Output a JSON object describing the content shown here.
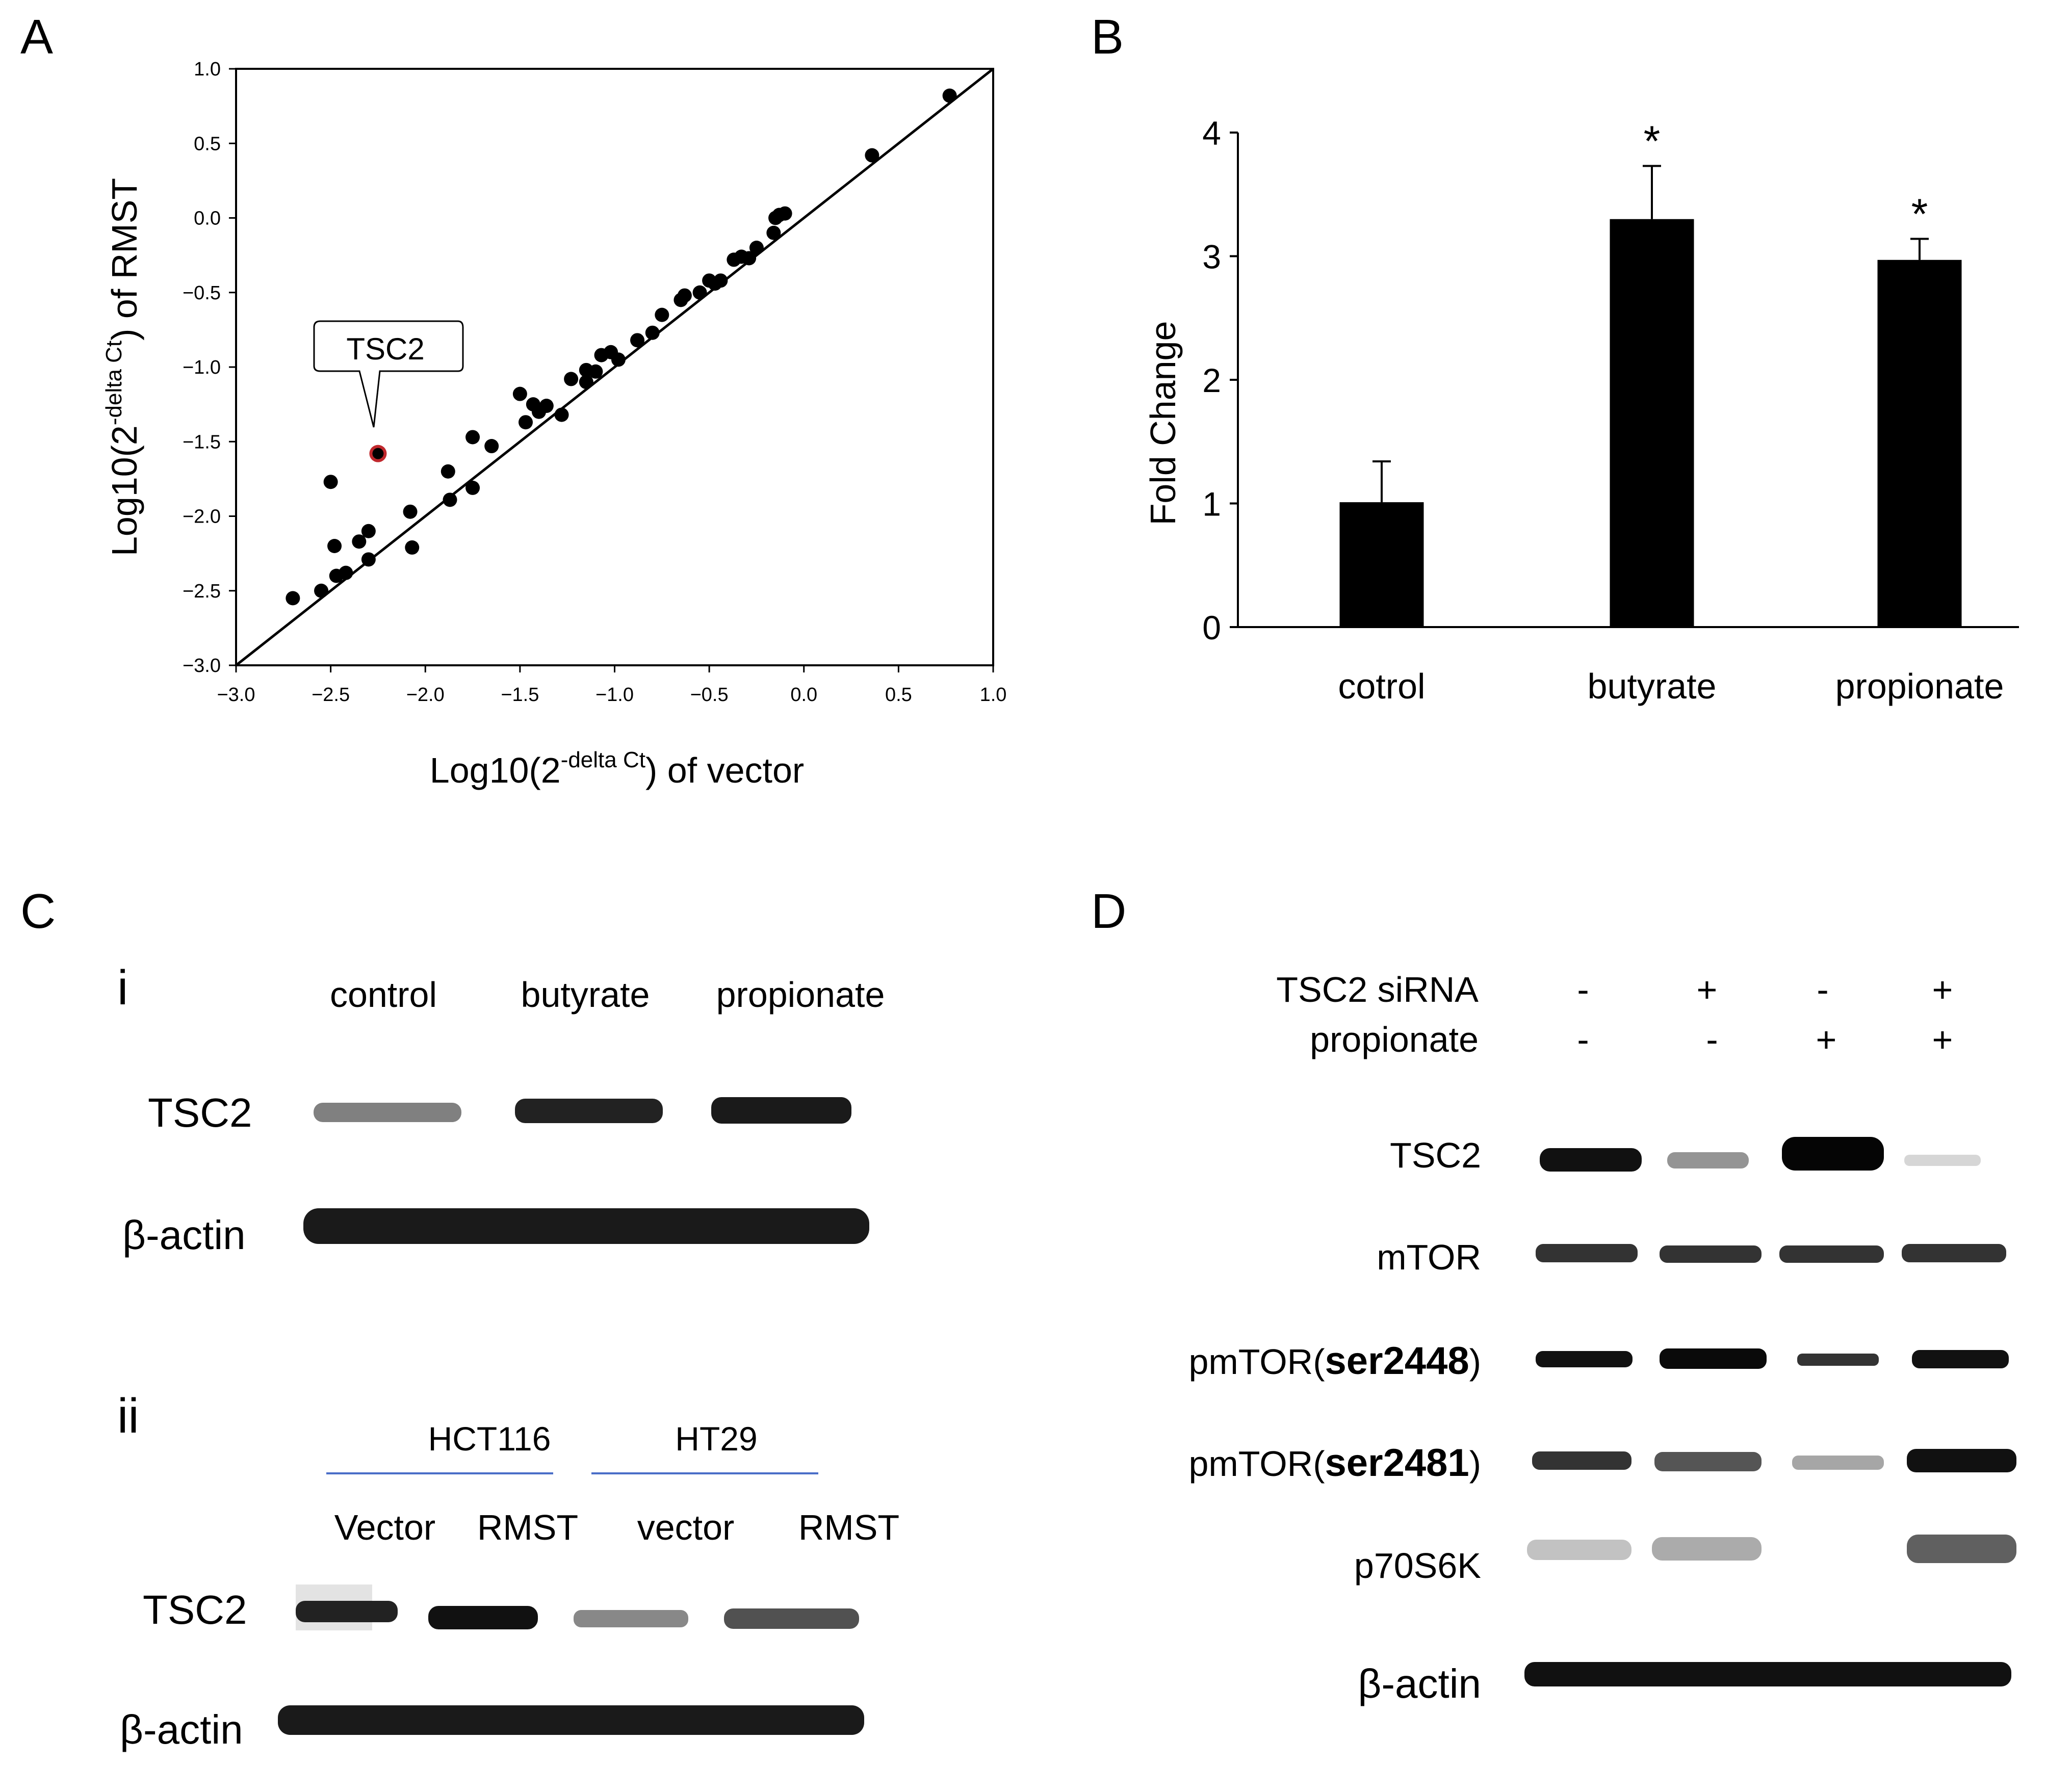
{
  "panels": {
    "a": "A",
    "b": "B",
    "c": "C",
    "d": "D"
  },
  "chart_data": [
    {
      "type": "scatter",
      "panel": "A",
      "xlabel": {
        "pre": "Log10(2",
        "sup": "-delta Ct",
        "post": ") of vector"
      },
      "ylabel": {
        "pre": "Log10(2",
        "sup": "-delta Ct",
        "post": ") of RMST"
      },
      "xlim": [
        -3.0,
        1.0
      ],
      "ylim": [
        -3.0,
        1.0
      ],
      "xticks": [
        "−3.0",
        "−2.5",
        "−2.0",
        "−1.5",
        "−1.0",
        "−0.5",
        "0.0",
        "0.5",
        "1.0"
      ],
      "yticks": [
        "−3.0",
        "−2.5",
        "−2.0",
        "−1.5",
        "−1.0",
        "−0.5",
        "0.0",
        "0.5",
        "1.0"
      ],
      "reference_line": {
        "from": [
          -3.0,
          -3.0
        ],
        "to": [
          1.0,
          1.0
        ]
      },
      "annotation": {
        "label": "TSC2",
        "point": [
          -2.25,
          -1.58
        ],
        "highlight_color": "#c0282d"
      },
      "points": [
        [
          -2.7,
          -2.55
        ],
        [
          -2.55,
          -2.5
        ],
        [
          -2.5,
          -1.77
        ],
        [
          -2.48,
          -2.2
        ],
        [
          -2.47,
          -2.4
        ],
        [
          -2.42,
          -2.38
        ],
        [
          -2.35,
          -2.17
        ],
        [
          -2.3,
          -2.1
        ],
        [
          -2.3,
          -2.29
        ],
        [
          -2.07,
          -2.21
        ],
        [
          -2.08,
          -1.97
        ],
        [
          -1.88,
          -1.7
        ],
        [
          -1.87,
          -1.89
        ],
        [
          -1.75,
          -1.47
        ],
        [
          -1.75,
          -1.81
        ],
        [
          -1.65,
          -1.53
        ],
        [
          -1.5,
          -1.18
        ],
        [
          -1.47,
          -1.37
        ],
        [
          -1.43,
          -1.25
        ],
        [
          -1.4,
          -1.3
        ],
        [
          -1.36,
          -1.26
        ],
        [
          -1.28,
          -1.32
        ],
        [
          -1.23,
          -1.08
        ],
        [
          -1.15,
          -1.02
        ],
        [
          -1.15,
          -1.1
        ],
        [
          -1.1,
          -1.03
        ],
        [
          -1.07,
          -0.92
        ],
        [
          -1.02,
          -0.9
        ],
        [
          -0.98,
          -0.95
        ],
        [
          -0.88,
          -0.82
        ],
        [
          -0.8,
          -0.77
        ],
        [
          -0.75,
          -0.65
        ],
        [
          -0.65,
          -0.55
        ],
        [
          -0.63,
          -0.52
        ],
        [
          -0.55,
          -0.5
        ],
        [
          -0.5,
          -0.42
        ],
        [
          -0.47,
          -0.44
        ],
        [
          -0.44,
          -0.42
        ],
        [
          -0.37,
          -0.28
        ],
        [
          -0.33,
          -0.26
        ],
        [
          -0.29,
          -0.27
        ],
        [
          -0.25,
          -0.2
        ],
        [
          -0.16,
          -0.1
        ],
        [
          -0.15,
          0.0
        ],
        [
          -0.13,
          0.02
        ],
        [
          -0.1,
          0.03
        ],
        [
          0.36,
          0.42
        ],
        [
          0.77,
          0.82
        ],
        [
          -2.25,
          -1.58
        ]
      ]
    },
    {
      "type": "bar",
      "panel": "B",
      "ylabel": "Fold Change",
      "xlabel": "",
      "ylim": [
        0,
        4
      ],
      "yticks": [
        "0",
        "1",
        "2",
        "3",
        "4"
      ],
      "categories": [
        "cotrol",
        "butyrate",
        "propionate"
      ],
      "values": [
        1.01,
        3.3,
        2.97
      ],
      "errors": [
        0.33,
        0.43,
        0.17
      ],
      "significance": [
        "",
        "*",
        "*"
      ],
      "bar_color": "#000000"
    }
  ],
  "panel_c": {
    "sub_i": "i",
    "sub_ii": "ii",
    "i_lanes": [
      "control",
      "butyrate",
      "propionate"
    ],
    "i_rows": [
      "TSC2",
      "β-actin"
    ],
    "ii_groups": [
      "HCT116",
      "HT29"
    ],
    "ii_group_line_color": "#4a6ec8",
    "ii_lanes": [
      "Vector",
      "RMST",
      "vector",
      "RMST"
    ],
    "ii_rows": [
      "TSC2",
      "β-actin"
    ]
  },
  "panel_d": {
    "conditions": [
      {
        "label": "TSC2 siRNA",
        "values": [
          "-",
          "+",
          "-",
          "+"
        ]
      },
      {
        "label": "propionate",
        "values": [
          "-",
          "-",
          "+",
          "+"
        ]
      }
    ],
    "rows": [
      {
        "pre": "TSC2",
        "mid": ""
      },
      {
        "pre": "mTOR",
        "mid": ""
      },
      {
        "pre": "pmTOR(",
        "mid": "ser2448",
        "post": ")"
      },
      {
        "pre": "pmTOR(",
        "mid": "ser2481",
        "post": ")"
      },
      {
        "pre": "p70S6K",
        "mid": ""
      },
      {
        "pre": "β-actin",
        "mid": ""
      }
    ]
  }
}
